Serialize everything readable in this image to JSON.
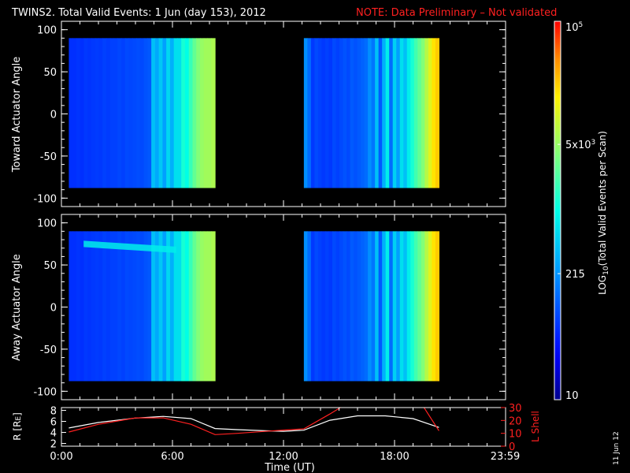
{
  "title": {
    "main": "TWINS2. Total Valid Events:  1 Jun (day 153), 2012",
    "note": "NOTE: Data Preliminary – Not validated"
  },
  "colorbar": {
    "label": "LOG10(Total Valid Events per Scan)",
    "label_parts": [
      "LOG",
      "10",
      "(Total Valid Events per Scan)"
    ],
    "ticks": [
      {
        "label": "10",
        "value": 10
      },
      {
        "label": "215",
        "value": 215
      },
      {
        "label": "5x10^3",
        "base": "5x10",
        "exp": "3",
        "value": 5000
      },
      {
        "label": "10^5",
        "base": "10",
        "exp": "5",
        "value": 100000
      }
    ],
    "range": [
      10,
      100000
    ],
    "scale": "log"
  },
  "footer": {
    "date": "11 Jun 12"
  },
  "chart_data": [
    {
      "type": "heatmap",
      "ylabel": "Toward Actuator Angle",
      "ylim": [
        -110,
        110
      ],
      "yticks": [
        "100",
        "50",
        "0",
        "-50",
        "-100"
      ],
      "ytick_values": [
        100,
        50,
        0,
        -50,
        -100
      ],
      "xlim_hours": [
        0,
        24
      ],
      "angle_range": [
        -88,
        90
      ],
      "segments": [
        {
          "start_hour": 0.4,
          "end_hour": 8.3,
          "log_levels": [
            1.75,
            1.75,
            1.78,
            1.75,
            1.8,
            1.78,
            1.8,
            1.82,
            1.8,
            1.85,
            1.82,
            1.85,
            1.85,
            1.88,
            1.85,
            1.9,
            1.88,
            1.9,
            1.92,
            1.9,
            1.95,
            1.98,
            2.6,
            2.45,
            2.65,
            2.4,
            2.75,
            2.5,
            2.8,
            2.8,
            3.1,
            3.0,
            3.25,
            3.45,
            3.6,
            3.7,
            3.75,
            3.75,
            3.8
          ]
        },
        {
          "start_hour": 13.1,
          "end_hour": 20.4,
          "log_levels": [
            2.3,
            2.1,
            1.8,
            1.9,
            1.85,
            1.8,
            1.85,
            1.8,
            1.9,
            1.85,
            1.9,
            1.95,
            1.9,
            2.0,
            1.95,
            2.0,
            2.05,
            2.1,
            2.3,
            2.15,
            2.6,
            2.0,
            2.5,
            2.9,
            2.1,
            2.7,
            2.4,
            2.8,
            2.6,
            2.9,
            3.1,
            3.3,
            3.45,
            3.6,
            3.85,
            4.05,
            4.25,
            4.35
          ]
        }
      ]
    },
    {
      "type": "heatmap",
      "ylabel": "Away Actuator Angle",
      "ylim": [
        -110,
        110
      ],
      "yticks": [
        "100",
        "50",
        "0",
        "-50",
        "-100"
      ],
      "ytick_values": [
        100,
        50,
        0,
        -50,
        -100
      ],
      "xlim_hours": [
        0,
        24
      ],
      "angle_range": [
        -88,
        90
      ],
      "segments": [
        {
          "start_hour": 0.4,
          "end_hour": 8.3,
          "log_levels": [
            1.75,
            1.75,
            1.78,
            1.75,
            1.8,
            1.78,
            1.8,
            1.82,
            1.8,
            1.85,
            1.82,
            1.85,
            1.85,
            1.88,
            1.85,
            1.9,
            1.88,
            1.9,
            1.92,
            1.9,
            1.95,
            1.98,
            2.6,
            2.45,
            2.65,
            2.4,
            2.75,
            2.5,
            2.8,
            2.8,
            3.1,
            3.0,
            3.25,
            3.45,
            3.6,
            3.7,
            3.75,
            3.75,
            3.8
          ]
        },
        {
          "start_hour": 13.1,
          "end_hour": 20.4,
          "log_levels": [
            2.3,
            2.1,
            1.8,
            1.9,
            1.85,
            1.8,
            1.85,
            1.8,
            1.9,
            1.85,
            1.9,
            1.95,
            1.9,
            2.0,
            1.95,
            2.0,
            2.05,
            2.1,
            2.3,
            2.15,
            2.6,
            2.0,
            2.5,
            2.9,
            2.1,
            2.7,
            2.4,
            2.8,
            2.6,
            2.9,
            3.1,
            3.3,
            3.45,
            3.6,
            3.85,
            4.05,
            4.25,
            4.35
          ]
        }
      ],
      "band": {
        "label_hidden": true,
        "start_hour": 1.2,
        "end_hour": 6.2,
        "angle_start": 75,
        "angle_end": 68,
        "log_level": 2.9
      }
    },
    {
      "type": "line",
      "xlabel": "Time (UT)",
      "xticks": [
        "0:00",
        "6:00",
        "12:00",
        "18:00",
        "23:59"
      ],
      "xtick_hours": [
        0,
        6,
        12,
        18,
        23.98
      ],
      "left_axis": {
        "label": "R [RE]",
        "label_main": "R [R",
        "label_sub": "E",
        "label_end": "]",
        "ylim": [
          1.5,
          8.5
        ],
        "ticks": [
          "8",
          "6",
          "4",
          "2"
        ],
        "tick_values": [
          8,
          6,
          4,
          2
        ]
      },
      "right_axis": {
        "label": "L Shell",
        "ylim": [
          0,
          30
        ],
        "ticks": [
          "30",
          "20",
          "10",
          "0"
        ],
        "tick_values": [
          30,
          20,
          10,
          0
        ],
        "tick_labels": [
          "30",
          "20",
          "10",
          "0"
        ]
      },
      "series": [
        {
          "axis": "left",
          "color": "#ffffff",
          "x": [
            0.4,
            2,
            4,
            5.5,
            7,
            8.3,
            9.5,
            11,
            12,
            13.1,
            14.5,
            16,
            17.5,
            19,
            20.4
          ],
          "y": [
            4.8,
            5.8,
            6.6,
            6.9,
            6.5,
            4.7,
            4.5,
            4.3,
            4.2,
            4.4,
            6.2,
            7.0,
            7.0,
            6.5,
            4.9
          ]
        },
        {
          "axis": "right",
          "color": "#ff2020",
          "x": [
            0.4,
            2,
            4,
            5.5,
            7,
            8.3,
            9.5,
            11,
            12,
            13.1,
            14.5,
            15.3,
            19.5,
            20.4
          ],
          "y": [
            11,
            17,
            22,
            22,
            17,
            9,
            10,
            11.5,
            12.5,
            13.5,
            25,
            32,
            32,
            12
          ]
        }
      ]
    }
  ]
}
